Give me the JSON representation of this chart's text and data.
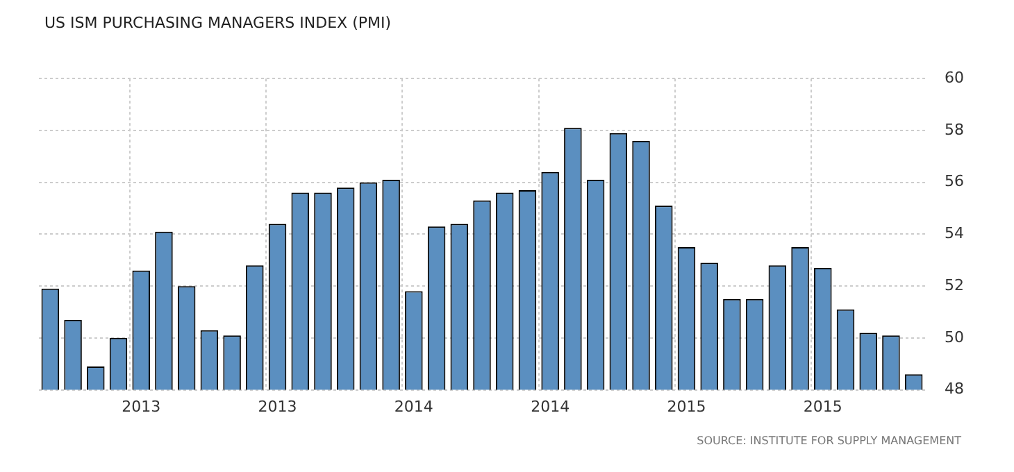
{
  "chart_data": {
    "type": "bar",
    "title": "US ISM PURCHASING MANAGERS INDEX (PMI)",
    "categories": [
      null,
      null,
      null,
      null,
      "2013",
      null,
      null,
      null,
      null,
      null,
      "2013",
      null,
      null,
      null,
      null,
      null,
      "2014",
      null,
      null,
      null,
      null,
      null,
      "2014",
      null,
      null,
      null,
      null,
      null,
      "2015",
      null,
      null,
      null,
      null,
      null,
      "2015",
      null,
      null,
      null,
      null
    ],
    "series": [
      {
        "color": "#5b8fc0",
        "values": [
          51.9,
          50.7,
          48.9,
          50.0,
          52.6,
          54.1,
          52.0,
          50.3,
          50.1,
          52.8,
          54.4,
          55.6,
          55.6,
          55.8,
          56.0,
          56.1,
          51.8,
          54.3,
          54.4,
          55.3,
          55.6,
          55.7,
          56.4,
          58.1,
          56.1,
          57.9,
          57.6,
          55.1,
          53.5,
          52.9,
          51.5,
          51.5,
          52.8,
          53.5,
          52.7,
          51.1,
          50.2,
          50.1,
          48.6
        ]
      }
    ],
    "ylim": [
      48,
      60
    ],
    "yticks": [
      48,
      50,
      52,
      54,
      56,
      58,
      60
    ],
    "grid": true,
    "legend": false,
    "annotations": [
      "SOURCE: INSTITUTE FOR SUPPLY MANAGEMENT"
    ]
  }
}
